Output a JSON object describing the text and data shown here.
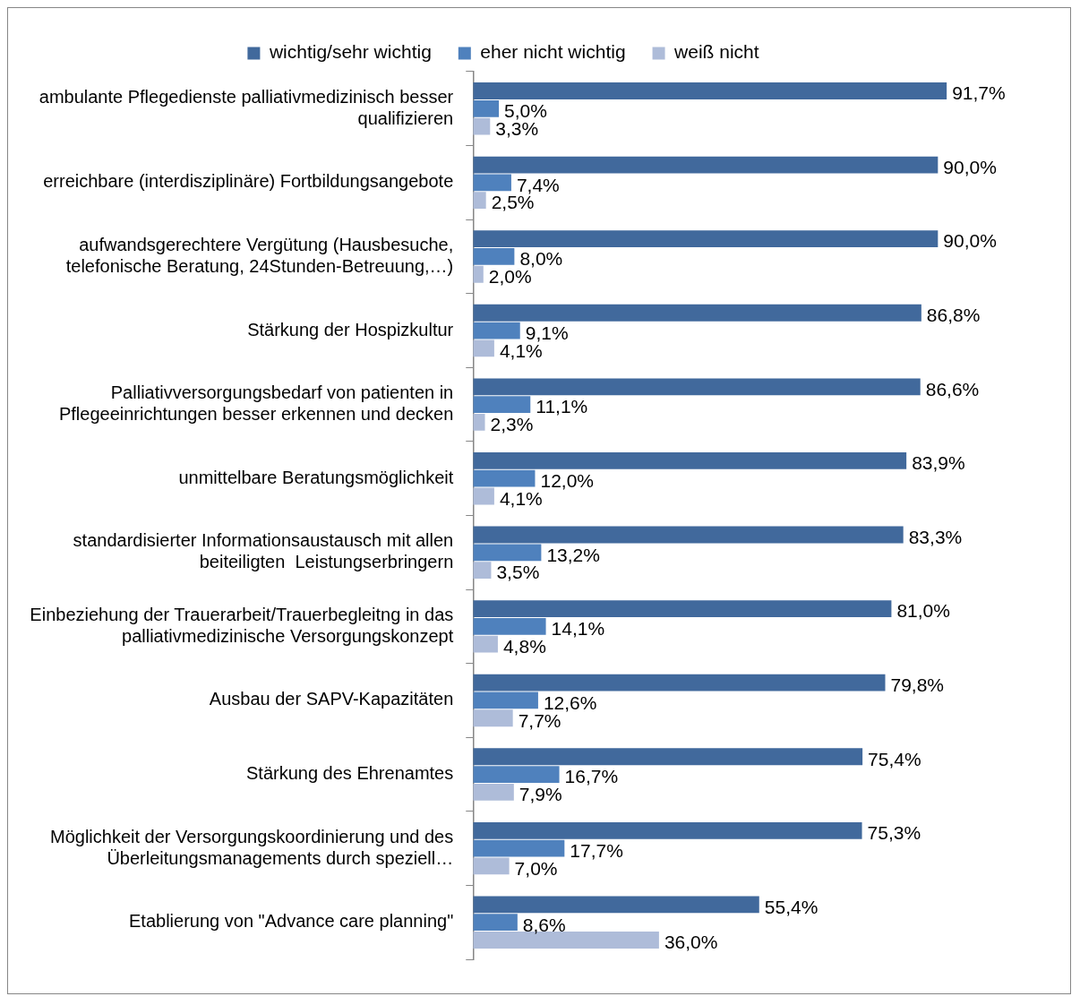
{
  "chart_data": {
    "type": "bar",
    "orientation": "horizontal",
    "legend": "top",
    "tick_labels": "y",
    "grid": false,
    "categories": [
      "ambulante Pflegedienste palliativmedizinisch besser qualifizieren",
      "erreichbare (interdisziplinäre) Fortbildungsangebote",
      "aufwandsgerechtere Vergütung (Hausbesuche, telefonische Beratung, 24Stunden-Betreuung,…)",
      "Stärkung der Hospizkultur",
      "Palliativversorgungsbedarf von patienten in Pflegeeinrichtungen besser erkennen und decken",
      "unmittelbare Beratungsmöglichkeit",
      "standardisierter Informationsaustausch mit allen beiteiligten  Leistungserbringern",
      "Einbeziehung der Trauerarbeit/Trauerbegleitng in das palliativmedizinische Versorgungskonzept",
      "Ausbau der SAPV-Kapazitäten",
      "Stärkung des Ehrenamtes",
      "Möglichkeit der Versorgungskoordinierung und des Überleitungsmanagements durch speziell…",
      "Etablierung von \"Advance care planning\""
    ],
    "series": [
      {
        "name": "wichtig/sehr wichtig",
        "color": "#41699c",
        "values": [
          91.7,
          90.0,
          90.0,
          86.8,
          86.6,
          83.9,
          83.3,
          81.0,
          79.8,
          75.4,
          75.3,
          55.4
        ],
        "value_labels": [
          "91,7%",
          "90,0%",
          "90,0%",
          "86,8%",
          "86,6%",
          "83,9%",
          "83,3%",
          "81,0%",
          "79,8%",
          "75,4%",
          "75,3%",
          "55,4%"
        ]
      },
      {
        "name": "eher nicht wichtig",
        "color": "#4f81bd",
        "values": [
          5.0,
          7.4,
          8.0,
          9.1,
          11.1,
          12.0,
          13.2,
          14.1,
          12.6,
          16.7,
          17.7,
          8.6
        ],
        "value_labels": [
          "5,0%",
          "7,4%",
          "8,0%",
          "9,1%",
          "11,1%",
          "12,0%",
          "13,2%",
          "14,1%",
          "12,6%",
          "16,7%",
          "17,7%",
          "8,6%"
        ]
      },
      {
        "name": "weiß nicht",
        "color": "#aebcd9",
        "values": [
          3.3,
          2.5,
          2.0,
          4.1,
          2.3,
          4.1,
          3.5,
          4.8,
          7.7,
          7.9,
          7.0,
          36.0
        ],
        "value_labels": [
          "3,3%",
          "2,5%",
          "2,0%",
          "4,1%",
          "2,3%",
          "4,1%",
          "3,5%",
          "4,8%",
          "7,7%",
          "7,9%",
          "7,0%",
          "36,0%"
        ]
      }
    ]
  }
}
